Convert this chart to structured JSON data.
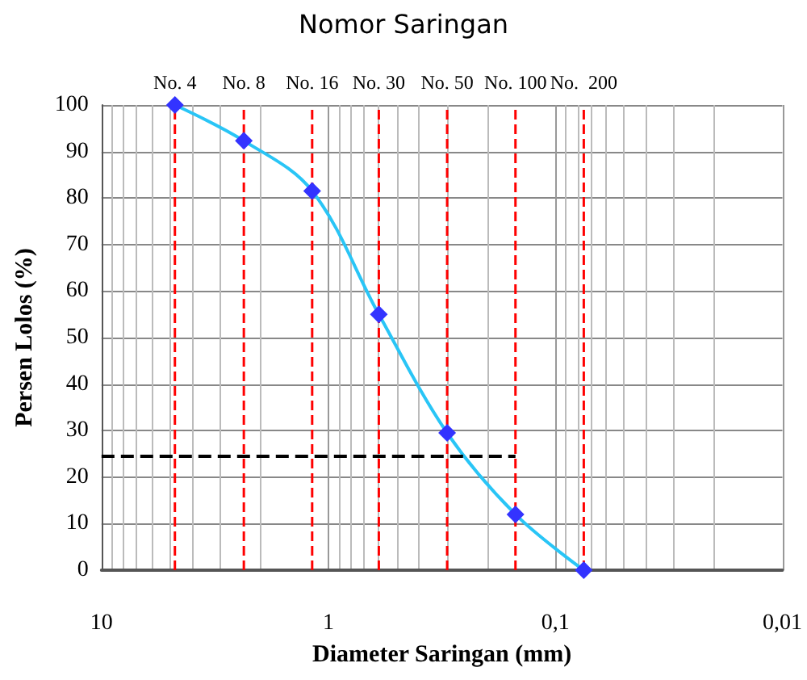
{
  "chart_data": {
    "type": "line",
    "title": "Nomor Saringan",
    "xlabel": "Diameter Saringan (mm)",
    "ylabel": "Persen Lolos (%)",
    "log": "x",
    "xlim": [
      10,
      0.01
    ],
    "xticks": [
      10,
      1,
      {
        "value": 0.1,
        "label": "0,1"
      },
      {
        "value": 0.01,
        "label": "0,01"
      }
    ],
    "ylim": [
      0,
      100
    ],
    "yticks": [
      0,
      10,
      20,
      30,
      40,
      50,
      60,
      70,
      80,
      90,
      100
    ],
    "grid": true,
    "series": [
      {
        "x": [
          4.75,
          2.36,
          1.18,
          0.6,
          0.3,
          0.15,
          0.075
        ],
        "values": [
          100,
          92.3,
          81.5,
          55,
          29.5,
          12,
          0
        ],
        "color": "#29c5f6",
        "colors": [
          "#3333ff",
          "#3333ff",
          "#3333ff",
          "#3333ff",
          "#3333ff",
          "#3333ff",
          "#3333ff"
        ],
        "marker": "diamond",
        "line_style": "solid"
      },
      {
        "type": "line",
        "x": [
          10,
          0.15
        ],
        "values": [
          24.5,
          24.5
        ],
        "color": "#000000",
        "marker": "none",
        "line_style": "dashed"
      }
    ],
    "ref_lines": [
      {
        "axis": "x",
        "value": 4.75,
        "label": "No. 4",
        "color": "#ff0000",
        "line_style": "dashed"
      },
      {
        "axis": "x",
        "value": 2.36,
        "label": "No. 8",
        "color": "#ff0000",
        "line_style": "dashed"
      },
      {
        "axis": "x",
        "value": 1.18,
        "label": "No. 16",
        "color": "#ff0000",
        "line_style": "dashed"
      },
      {
        "axis": "x",
        "value": 0.6,
        "label": "No. 30",
        "color": "#ff0000",
        "line_style": "dashed"
      },
      {
        "axis": "x",
        "value": 0.3,
        "label": "No. 50",
        "color": "#ff0000",
        "line_style": "dashed"
      },
      {
        "axis": "x",
        "value": 0.15,
        "label": "No. 100",
        "color": "#ff0000",
        "line_style": "dashed"
      },
      {
        "axis": "x",
        "value": 0.075,
        "label": "No.  200",
        "color": "#ff0000",
        "line_style": "dashed"
      }
    ]
  }
}
